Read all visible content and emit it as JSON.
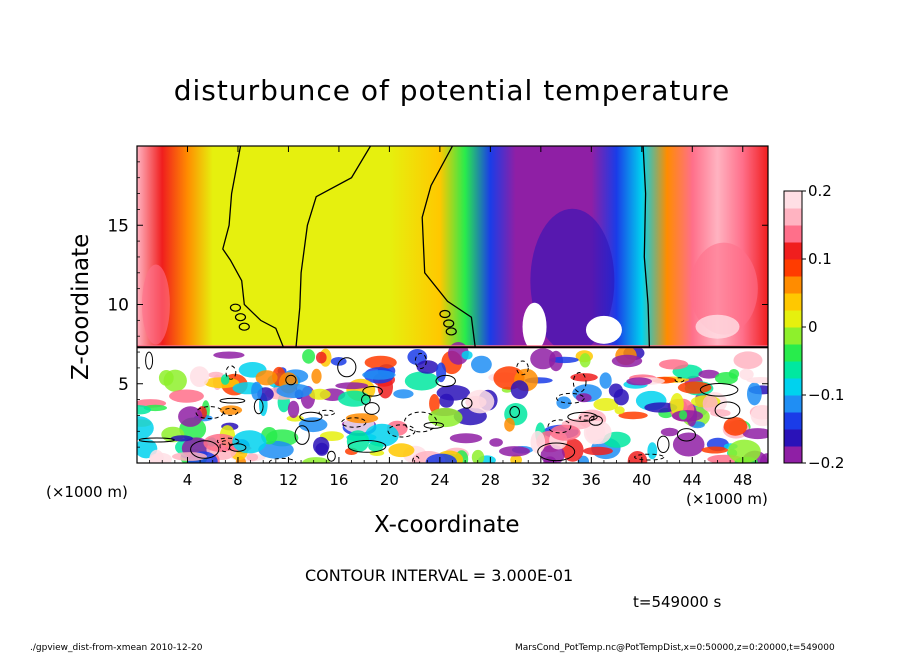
{
  "chart_data": {
    "type": "heatmap",
    "title": "disturbunce of potential temperature",
    "xlabel": "X-coordinate",
    "ylabel": "Z-coordinate",
    "x_unit_label_left": "(×1000 m)",
    "x_unit_label_right": "(×1000 m)",
    "xlim": [
      0,
      50
    ],
    "ylim": [
      0,
      20
    ],
    "x_ticks": [
      4,
      8,
      12,
      16,
      20,
      24,
      28,
      32,
      36,
      40,
      44,
      48
    ],
    "y_ticks": [
      5,
      10,
      15
    ],
    "colorbar": {
      "range": [
        -0.2,
        0.2
      ],
      "ticks": [
        {
          "value": 0.2,
          "label": "0.2"
        },
        {
          "value": 0.1,
          "label": "0.1"
        },
        {
          "value": 0.0,
          "label": "0"
        },
        {
          "value": -0.1,
          "label": "−0.1"
        },
        {
          "value": -0.2,
          "label": "−0.2"
        }
      ],
      "colors": [
        "#8f1fa5",
        "#2a12b8",
        "#1a3ce8",
        "#1f8ef4",
        "#00d2ee",
        "#00e8a0",
        "#28ec4c",
        "#8ef02c",
        "#e6f00e",
        "#ffc800",
        "#ff8c00",
        "#ff3c00",
        "#f01e1e",
        "#ff6f8a",
        "#ffb3c1",
        "#ffdfe5"
      ]
    },
    "upper_field": [
      {
        "x": 0,
        "v": 0.16
      },
      {
        "x": 2,
        "v": 0.1
      },
      {
        "x": 4,
        "v": 0.05
      },
      {
        "x": 6,
        "v": 0.02
      },
      {
        "x": 8,
        "v": 0.0
      },
      {
        "x": 12,
        "v": 0.02
      },
      {
        "x": 16,
        "v": 0.02
      },
      {
        "x": 20,
        "v": 0.01
      },
      {
        "x": 24,
        "v": 0.03
      },
      {
        "x": 26,
        "v": -0.05
      },
      {
        "x": 28,
        "v": -0.14
      },
      {
        "x": 30,
        "v": -0.18
      },
      {
        "x": 32,
        "v": -0.19
      },
      {
        "x": 34,
        "v": -0.2
      },
      {
        "x": 36,
        "v": -0.19
      },
      {
        "x": 38,
        "v": -0.14
      },
      {
        "x": 40,
        "v": -0.08
      },
      {
        "x": 42,
        "v": 0.06
      },
      {
        "x": 44,
        "v": 0.13
      },
      {
        "x": 46,
        "v": 0.16
      },
      {
        "x": 48,
        "v": 0.15
      },
      {
        "x": 50,
        "v": 0.12
      }
    ],
    "boundary_layer_top": 7.3,
    "contour_interval_label": "CONTOUR INTERVAL = 3.000E-01",
    "time_label": "t=549000 s"
  },
  "footer": {
    "left": "./gpview_dist-from-xmean  2010-12-20",
    "right": "MarsCond_PotTemp.nc@PotTempDist,x=0:50000,z=0:20000,t=549000"
  }
}
